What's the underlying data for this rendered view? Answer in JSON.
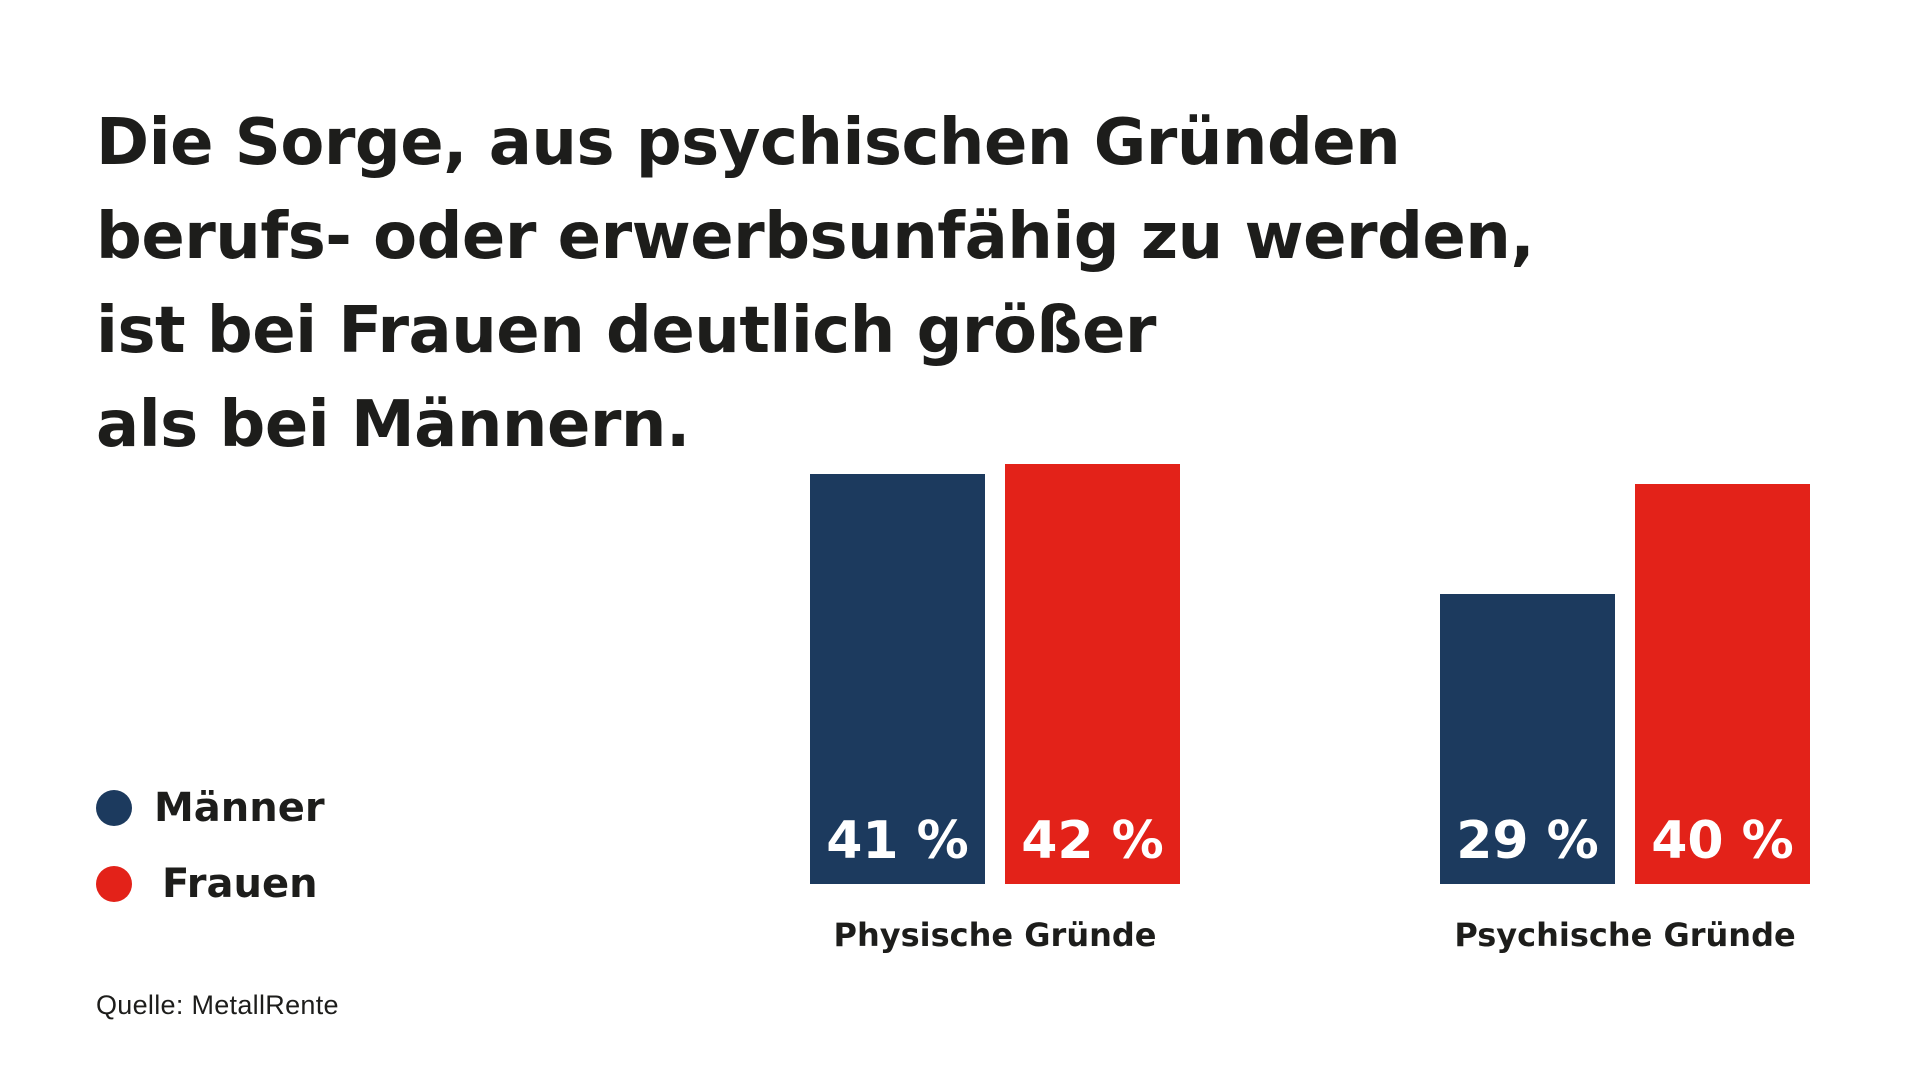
{
  "title_lines": [
    "Die Sorge, aus psychischen Gründen",
    "berufs- oder erwerbsunfähig zu werden,",
    "ist bei Frauen deutlich größer",
    "als bei Männern."
  ],
  "source": "Quelle: MetallRente",
  "colors": {
    "maenner": "#1c3a5e",
    "frauen": "#e32219",
    "text": "#1d1d1b"
  },
  "chart_data": {
    "type": "bar",
    "categories": [
      "Physische Gründe",
      "Psychische Gründe"
    ],
    "series": [
      {
        "name": "Männer",
        "values": [
          41,
          29
        ],
        "labels": [
          "41 %",
          "29 %"
        ]
      },
      {
        "name": "Frauen",
        "values": [
          42,
          40
        ],
        "labels": [
          "42 %",
          "40 %"
        ]
      }
    ],
    "unit": "%",
    "legend": "left",
    "grid": false
  }
}
